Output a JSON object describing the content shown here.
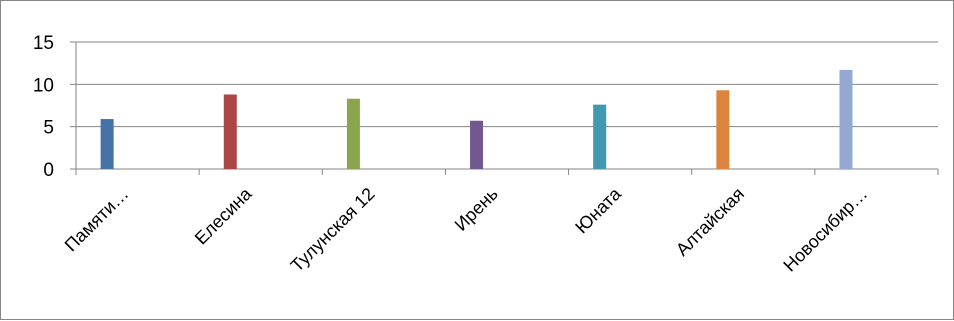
{
  "chart_data": {
    "type": "bar",
    "title": "",
    "xlabel": "",
    "ylabel": "",
    "categories": [
      "Памяти…",
      "Елесина",
      "Тулунская 12",
      "Ирень",
      "Юната",
      "Алтайская",
      "Новосибир…"
    ],
    "values": [
      5.9,
      8.8,
      8.3,
      5.7,
      7.6,
      9.3,
      11.7
    ],
    "colors": [
      "#4572a7",
      "#aa4643",
      "#89a54e",
      "#71588f",
      "#4198af",
      "#db843d",
      "#93a9cf"
    ],
    "ylim": [
      0,
      15
    ],
    "yticks": [
      0,
      5,
      10,
      15
    ],
    "ytick_labels": [
      "0",
      "5",
      "10",
      "15"
    ],
    "grid": true,
    "legend": "none"
  }
}
